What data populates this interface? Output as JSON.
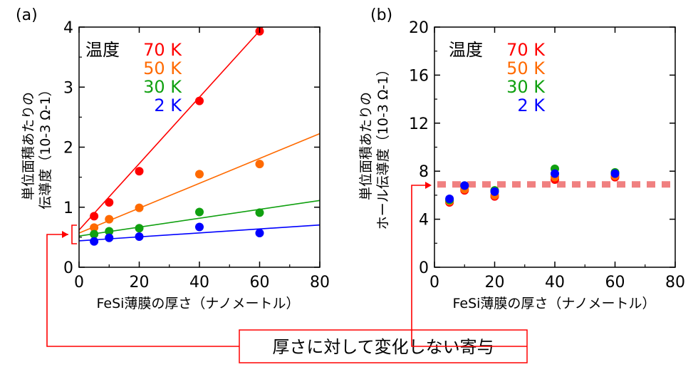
{
  "chart_data": [
    {
      "type": "scatter",
      "panel_label": "(a)",
      "xlabel": "FeSi薄膜の厚さ（ナノメートル）",
      "ylabel_line1": "単位面積あたりの",
      "ylabel_line2": "伝導度（10-3 Ω-1）",
      "xlim": [
        0,
        80
      ],
      "ylim": [
        0,
        4
      ],
      "xticks": [
        "0",
        "20",
        "40",
        "60",
        "80"
      ],
      "yticks": [
        "0",
        "1",
        "2",
        "3",
        "4"
      ],
      "legend_title": "温度",
      "series": [
        {
          "name": "70 K",
          "color": "#ff0000",
          "x": [
            5,
            10,
            20,
            40,
            60
          ],
          "y": [
            0.85,
            1.08,
            1.6,
            2.77,
            3.93
          ],
          "fit": [
            0.62,
            0.0553
          ]
        },
        {
          "name": "50 K",
          "color": "#ff6a00",
          "x": [
            5,
            10,
            20,
            40,
            60
          ],
          "y": [
            0.66,
            0.8,
            0.99,
            1.55,
            1.72
          ],
          "fit": [
            0.57,
            0.0207
          ]
        },
        {
          "name": "30 K",
          "color": "#10a010",
          "x": [
            5,
            10,
            20,
            40,
            60
          ],
          "y": [
            0.55,
            0.6,
            0.65,
            0.92,
            0.91
          ],
          "fit": [
            0.52,
            0.0074
          ]
        },
        {
          "name": "2 K",
          "color": "#0000ff",
          "x": [
            5,
            10,
            20,
            40,
            60
          ],
          "y": [
            0.43,
            0.49,
            0.51,
            0.67,
            0.57
          ],
          "fit": [
            0.44,
            0.0033
          ]
        }
      ]
    },
    {
      "type": "scatter",
      "panel_label": "(b)",
      "xlabel": "FeSi薄膜の厚さ（ナノメートル）",
      "ylabel_line1": "単位面積あたりの",
      "ylabel_line2": "ホール伝導度（10-3 Ω-1）",
      "xlim": [
        0,
        80
      ],
      "ylim": [
        0,
        20
      ],
      "xticks": [
        "0",
        "20",
        "40",
        "60",
        "80"
      ],
      "yticks": [
        "0",
        "4",
        "8",
        "12",
        "16",
        "20"
      ],
      "legend_title": "温度",
      "reference_line_y": 6.9,
      "series": [
        {
          "name": "70 K",
          "color": "#ff0000",
          "x": [
            5,
            10,
            20,
            40,
            60
          ],
          "y": [
            5.4,
            6.4,
            5.9,
            7.3,
            7.5
          ]
        },
        {
          "name": "50 K",
          "color": "#ff6a00",
          "x": [
            5,
            10,
            20,
            40,
            60
          ],
          "y": [
            5.5,
            6.5,
            6.0,
            7.5,
            7.6
          ]
        },
        {
          "name": "30 K",
          "color": "#10a010",
          "x": [
            5,
            10,
            20,
            40,
            60
          ],
          "y": [
            5.6,
            6.8,
            6.4,
            8.2,
            7.9
          ]
        },
        {
          "name": "2 K",
          "color": "#0000ff",
          "x": [
            5,
            10,
            20,
            40,
            60
          ],
          "y": [
            5.7,
            6.8,
            6.3,
            7.8,
            7.8
          ]
        }
      ]
    }
  ],
  "callout": {
    "text": "厚さに対して変化しない寄与",
    "color": "#ff0000"
  }
}
